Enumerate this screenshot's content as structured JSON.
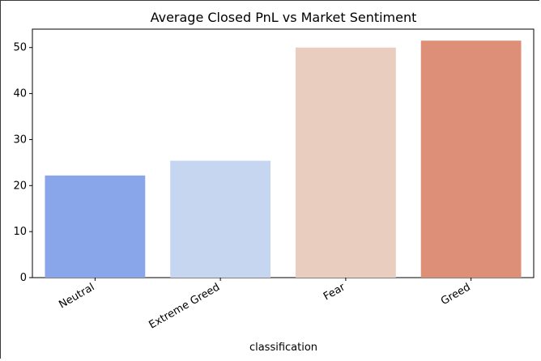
{
  "chart_data": {
    "type": "bar",
    "title": "Average Closed PnL vs Market Sentiment",
    "xlabel": "classification",
    "ylabel": "",
    "categories": [
      "Neutral",
      "Extreme Greed",
      "Fear",
      "Greed"
    ],
    "values": [
      22.2,
      25.4,
      50.0,
      51.5
    ],
    "colors": [
      "#8aa6eb",
      "#c6d5f0",
      "#e9cdbf",
      "#dd8f78"
    ],
    "ylim": [
      0,
      54
    ],
    "yticks": [
      0,
      10,
      20,
      30,
      40,
      50
    ],
    "grid": false,
    "legend": "none"
  }
}
